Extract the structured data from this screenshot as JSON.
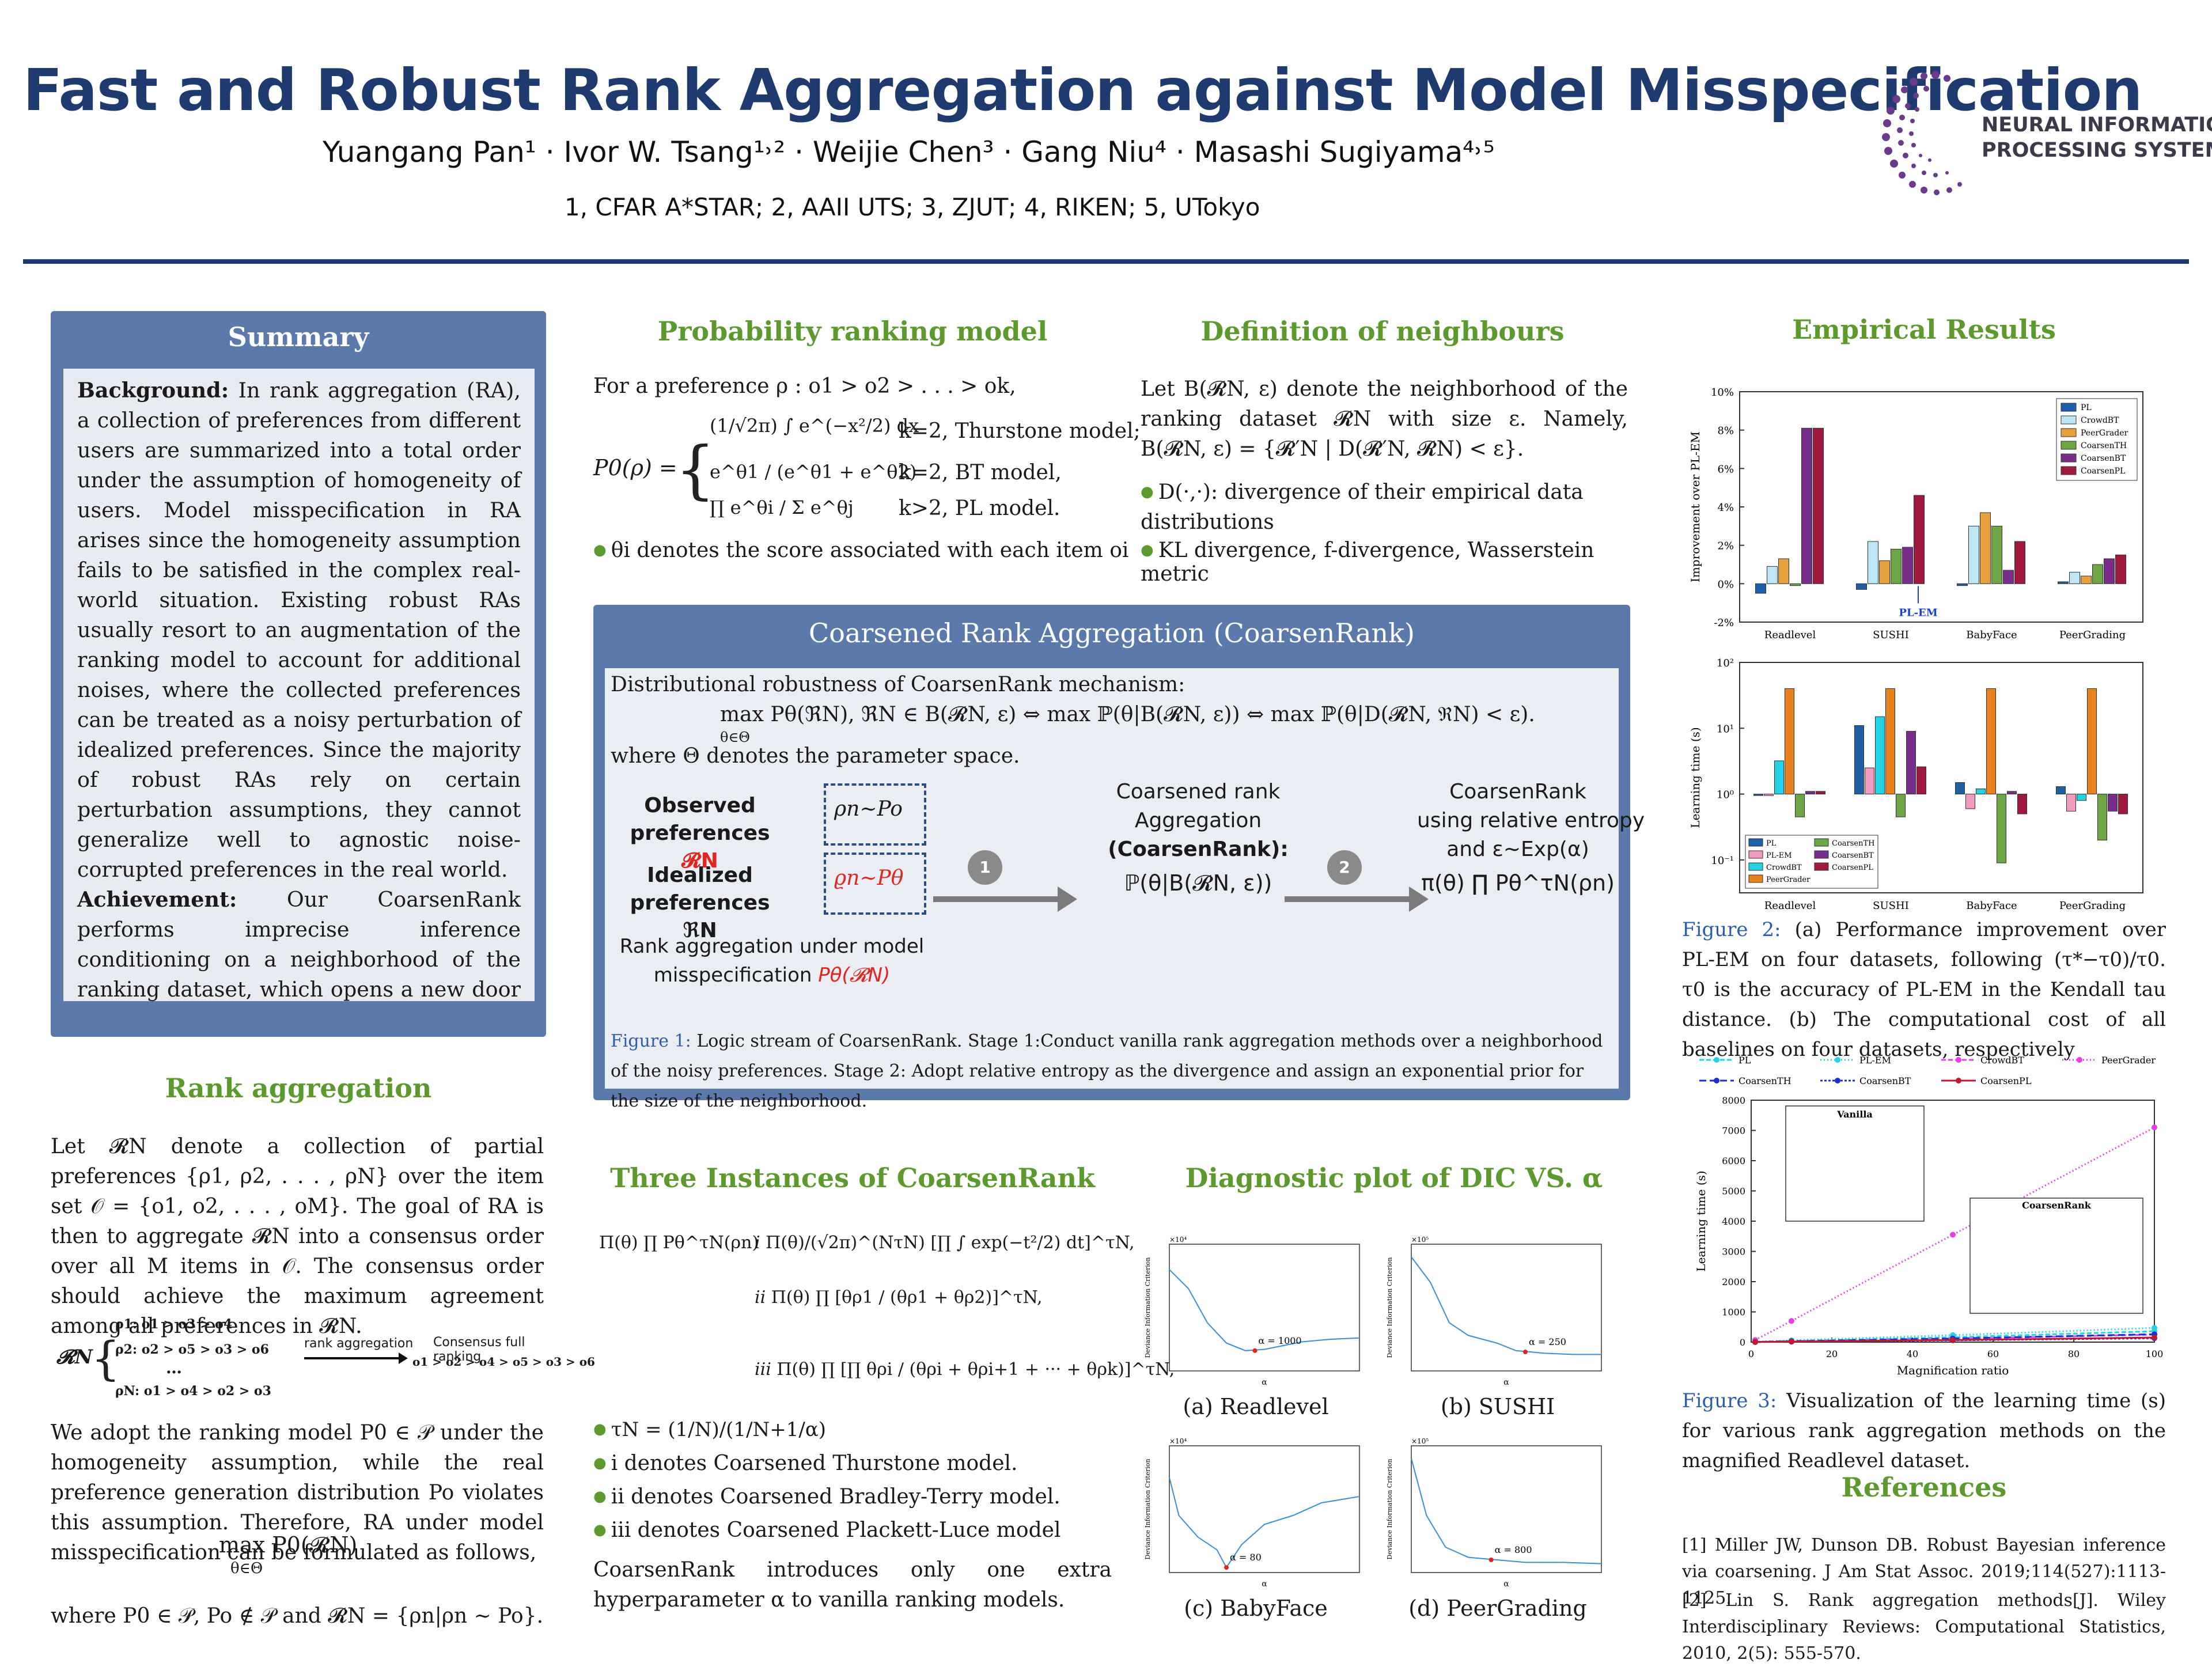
{
  "header": {
    "title": "Fast and Robust Rank Aggregation against Model Misspecification",
    "authors": "Yuangang Pan¹ · Ivor W. Tsang¹˒² · Weijie Chen³ · Gang Niu⁴ · Masashi Sugiyama⁴˒⁵",
    "affiliations": "1, CFAR A*STAR; 2, AAII UTS; 3, ZJUT; 4, RIKEN; 5, UTokyo",
    "logo_line1": "NEURAL INFORMATION",
    "logo_line2": "PROCESSING SYSTEMS"
  },
  "summary": {
    "title": "Summary",
    "background_label": "Background:",
    "background_text": "In rank aggregation (RA), a collection of preferences from different users are summarized into a total order under the assumption of homogeneity of users. Model misspecification in RA arises since the homogeneity assumption fails to be satisfied in the complex real-world situation. Existing robust RAs usually resort to an augmentation of the ranking model to account for additional noises, where the collected preferences can be treated as a noisy perturbation of idealized preferences. Since the majority of robust RAs rely on certain perturbation assumptions, they cannot generalize well to agnostic noise-corrupted preferences in the real world.",
    "achievement_label": "Achievement:",
    "achievement_text": "Our CoarsenRank performs imprecise inference conditioning on a neighborhood of the ranking dataset, which opens a new door to robust rank aggregation against model misspecification. Particularly, a computationally efficient formula for CoarsenRank is derived, which introduces only one extra hyperparameter to vanilla ranking models."
  },
  "rank_aggregation": {
    "title": "Rank aggregation",
    "para1": "Let 𝓡N denote a collection of partial preferences {ρ1, ρ2, . . . , ρN} over the item set 𝒪 = {o1, o2, . . . , oM}. The goal of RA is then to aggregate 𝓡N into a consensus order over all M items in 𝒪. The consensus order should achieve the maximum agreement among all preferences in 𝓡N.",
    "diagram_R": "𝓡N",
    "diagram_rho1": "ρ1: o1 > o3 > o4",
    "diagram_rho2": "ρ2: o2 > o5 > o3 > o6",
    "diagram_dots": "…",
    "diagram_rhoN": "ρN: o1 > o4 > o2 > o3",
    "diagram_arrow_label": "rank aggregation",
    "diagram_consensus_label": "Consensus full ranking",
    "diagram_consensus": "o1 > o2 > o4 > o5 > o3 > o6",
    "para2": "We adopt the ranking model P0 ∈ 𝒫 under the homogeneity assumption, while the real preference generation distribution Po violates this assumption. Therefore, RA under model misspecification can be formulated as follows,",
    "formula": "max   P0(𝓡N)",
    "formula_sub": "θ∈Θ",
    "para3": "where P0 ∈ 𝒫,  Po ∉ 𝒫 and 𝓡N = {ρn|ρn ∼ Po}."
  },
  "probability_model": {
    "title": "Probability ranking model",
    "intro": "For a preference ρ : o1 > o2 > . . . > ok,",
    "lhs": "P0(ρ) =",
    "case1": "(1/√2π) ∫ e^(−x²/2) dx",
    "case1_label": "k=2, Thurstone model;",
    "case2": "e^θ1 / (e^θ1 + e^θ2)",
    "case2_label": "k=2, BT model,",
    "case3": "∏ e^θi / Σ e^θj",
    "case3_label": "k>2, PL model.",
    "bullet": "θi denotes the score associated with each item oi"
  },
  "neighbours": {
    "title": "Definition of neighbours",
    "text": "Let B(𝓡N, ε) denote the neighborhood of the ranking dataset 𝓡N with size ε. Namely, B(𝓡N, ε) = {𝓡′N | D(𝓡′N, 𝓡N) < ε}.",
    "bullet1": "D(·,·): divergence of their empirical data distributions",
    "bullet2": "KL divergence, f-divergence, Wasserstein metric"
  },
  "coarsen": {
    "title": "Coarsened Rank Aggregation (CoarsenRank)",
    "intro": "Distributional robustness of CoarsenRank mechanism:",
    "formula": "max Pθ(ℜN),  ℜN ∈ B(𝓡N, ε) ⇔ max ℙ(θ|B(𝓡N, ε)) ⇔ max ℙ(θ|D(𝓡N, ℜN) < ε).",
    "formula_sub": "θ∈Θ",
    "where": "where Θ denotes the parameter space.",
    "observed_label": "Observed preferences",
    "observed_sym": "𝓡N",
    "observed_box": "ρn∼Po",
    "idealized_label": "Idealized preferences",
    "idealized_sym": "ℜN",
    "idealized_box": "ϱn∼Pθ",
    "misspec_line1": "Rank aggregation under model",
    "misspec_line2": "misspecification",
    "misspec_sym": "Pθ(𝓡N)",
    "stage1": "1",
    "stage2": "2",
    "mid_line1": "Coarsened rank",
    "mid_line2": "Aggregation",
    "mid_line3": "(CoarsenRank):",
    "mid_formula": "ℙ(θ|B(𝓡N, ε))",
    "right_line1": "CoarsenRank",
    "right_line2": "using relative entropy",
    "right_line3": "and ε∼Exp(α)",
    "right_formula": "π(θ) ∏ Pθ^τN(ρn)",
    "caption_label": "Figure 1:",
    "caption": "Logic stream of CoarsenRank. Stage 1:Conduct vanilla rank aggregation methods over a neighborhood of the noisy preferences. Stage 2: Adopt relative entropy as the divergence and assign an exponential prior for the size of the neighborhood."
  },
  "instances": {
    "title": "Three Instances of CoarsenRank",
    "eq_lhs": "Π(θ) ∏ Pθ^τN(ρn)",
    "eq_i": "Π(θ)/(√2π)^(NτN) [∏ ∫ exp(−t²/2) dt]^τN,",
    "eq_ii": "Π(θ) ∏ [θρ1 / (θρ1 + θρ2)]^τN,",
    "eq_iii": "Π(θ) ∏ [∏ θρi / (θρi + θρi+1 + ··· + θρk)]^τN,",
    "tau_def": "τN = (1/N)/(1/N+1/α)",
    "b_i": "i denotes Coarsened Thurstone model.",
    "b_ii": "ii denotes Coarsened Bradley-Terry model.",
    "b_iii": "iii denotes Coarsened Plackett-Luce model",
    "note": "CoarsenRank introduces only one extra hyperparameter α to vanilla ranking models."
  },
  "diagnostic": {
    "title": "Diagnostic plot of DIC VS. α",
    "ylabel": "Deviance Information Criterion",
    "xlabel": "α",
    "panels": [
      {
        "label": "(a) Readlevel",
        "ann": "α = 1000",
        "exp": "×10⁴"
      },
      {
        "label": "(b) SUSHI",
        "ann": "α = 250",
        "exp": "×10⁵"
      },
      {
        "label": "(c) BabyFace",
        "ann": "α = 80",
        "exp": "×10⁴"
      },
      {
        "label": "(d) PeerGrading",
        "ann": "α = 800",
        "exp": "×10⁵"
      }
    ]
  },
  "empirical": {
    "title": "Empirical Results",
    "pl_em_label": "PL-EM",
    "fig2_label": "Figure 2:",
    "fig2_caption": "(a) Performance improvement over PL-EM on four datasets, following (τ*−τ0)/τ0. τ0 is the accuracy of PL-EM in the Kendall tau distance. (b) The computational cost of all baselines on four datasets, respectively",
    "fig3_label": "Figure 3:",
    "fig3_caption": "Visualization of the learning time (s) for various rank aggregation methods on the magnified Readlevel dataset.",
    "vanilla_label": "Vanilla",
    "coarsen_label": "CoarsenRank"
  },
  "references": {
    "title": "References",
    "r1": "[1] Miller JW, Dunson DB. Robust Bayesian inference via coarsening. J Am Stat Assoc. 2019;114(527):1113-1125.",
    "r2": "[2] Lin S. Rank aggregation methods[J]. Wiley Interdisciplinary Reviews: Computational Statistics, 2010, 2(5): 555-570."
  },
  "chart_data": [
    {
      "type": "bar",
      "ylabel": "Improvement over PL-EM",
      "categories": [
        "Readlevel",
        "SUSHI",
        "BabyFace",
        "PeerGrading"
      ],
      "ylim": [
        -2,
        10
      ],
      "yticks": [
        "-2%",
        "0%",
        "2%",
        "4%",
        "6%",
        "8%",
        "10%"
      ],
      "legend_position": "top-right",
      "series": [
        {
          "name": "PL",
          "color": "#1f5fa8",
          "values": [
            -0.5,
            -0.3,
            -0.1,
            0.1
          ]
        },
        {
          "name": "CrowdBT",
          "color": "#bfe6f5",
          "values": [
            0.9,
            2.2,
            3.0,
            0.6
          ]
        },
        {
          "name": "PeerGrader",
          "color": "#e8a13a",
          "values": [
            1.3,
            1.2,
            3.7,
            0.4
          ]
        },
        {
          "name": "CoarsenTH",
          "color": "#6ea545",
          "values": [
            -0.1,
            1.8,
            3.0,
            1.0
          ]
        },
        {
          "name": "CoarsenBT",
          "color": "#7a2e8c",
          "values": [
            8.1,
            1.9,
            0.7,
            1.3
          ]
        },
        {
          "name": "CoarsenPL",
          "color": "#a0183e",
          "values": [
            8.1,
            4.6,
            2.2,
            1.5
          ]
        }
      ]
    },
    {
      "type": "bar",
      "ylabel": "Learning time (s)",
      "scale": "log",
      "categories": [
        "Readlevel",
        "SUSHI",
        "BabyFace",
        "PeerGrading"
      ],
      "yticks": [
        "10⁻¹",
        "10⁰",
        "10¹",
        "10²"
      ],
      "legend_position": "bottom-left",
      "series": [
        {
          "name": "PL",
          "color": "#1f5fa8",
          "values": [
            0.95,
            11,
            1.5,
            1.3
          ]
        },
        {
          "name": "PL-EM",
          "color": "#f29bc1",
          "values": [
            0.95,
            2.5,
            0.6,
            0.55
          ]
        },
        {
          "name": "CrowdBT",
          "color": "#22d3e6",
          "values": [
            3.2,
            15,
            1.2,
            0.8
          ]
        },
        {
          "name": "PeerGrader",
          "color": "#e8821e",
          "values": [
            40,
            40,
            40,
            40
          ]
        },
        {
          "name": "CoarsenTH",
          "color": "#6ea545",
          "values": [
            0.45,
            0.45,
            0.09,
            0.2
          ]
        },
        {
          "name": "CoarsenBT",
          "color": "#7a2e8c",
          "values": [
            1.1,
            9,
            1.1,
            0.55
          ]
        },
        {
          "name": "CoarsenPL",
          "color": "#a0183e",
          "values": [
            1.1,
            2.6,
            0.5,
            0.5
          ]
        }
      ]
    },
    {
      "type": "line",
      "xlabel": "Magnification ratio",
      "ylabel": "Learning time (s)",
      "xlim": [
        0,
        100
      ],
      "ylim": [
        0,
        8000
      ],
      "xticks": [
        0,
        20,
        40,
        60,
        80,
        100
      ],
      "yticks": [
        0,
        1000,
        2000,
        3000,
        4000,
        5000,
        6000,
        7000,
        8000
      ],
      "legend_position": "top",
      "x": [
        1,
        10,
        50,
        100
      ],
      "series": [
        {
          "name": "PL",
          "color": "#22d3e6",
          "values": [
            8,
            40,
            160,
            360
          ]
        },
        {
          "name": "PL-EM",
          "color": "#22d3e6",
          "values": [
            12,
            60,
            230,
            470
          ]
        },
        {
          "name": "CrowdBT",
          "color": "#e83ee8",
          "values": [
            5,
            25,
            110,
            250
          ]
        },
        {
          "name": "PeerGrader",
          "color": "#e83ee8",
          "values": [
            70,
            700,
            3550,
            7100
          ]
        },
        {
          "name": "CoarsenTH",
          "color": "#1a2fd1",
          "values": [
            6,
            30,
            120,
            260
          ]
        },
        {
          "name": "CoarsenBT",
          "color": "#1a2fd1",
          "values": [
            3,
            15,
            60,
            130
          ]
        },
        {
          "name": "CoarsenPL",
          "color": "#c0182e",
          "values": [
            4,
            18,
            70,
            150
          ]
        }
      ]
    }
  ]
}
